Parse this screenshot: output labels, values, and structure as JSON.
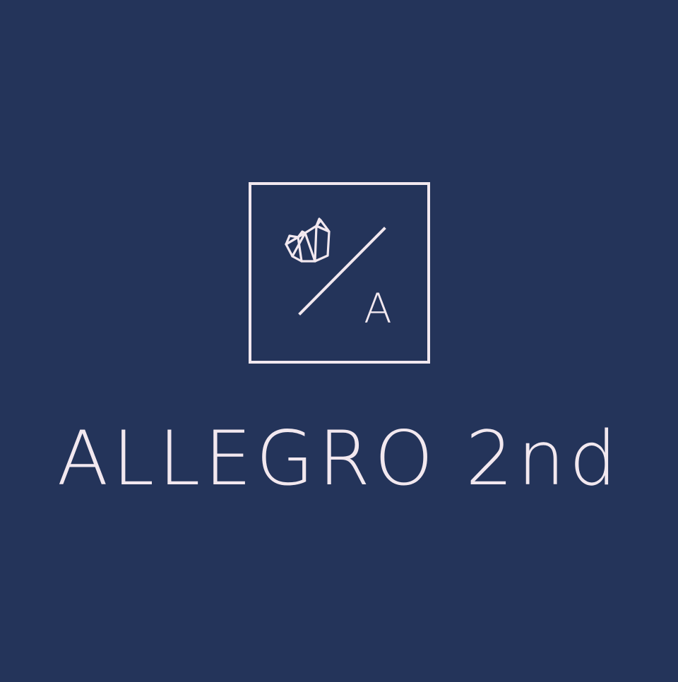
{
  "colors": {
    "background": "#24345a",
    "foreground": "#f2e8ef"
  },
  "logo": {
    "icon": "origami-swan-icon",
    "monogram_letter": "A",
    "wordmark": "ALLEGRO 2nd"
  }
}
